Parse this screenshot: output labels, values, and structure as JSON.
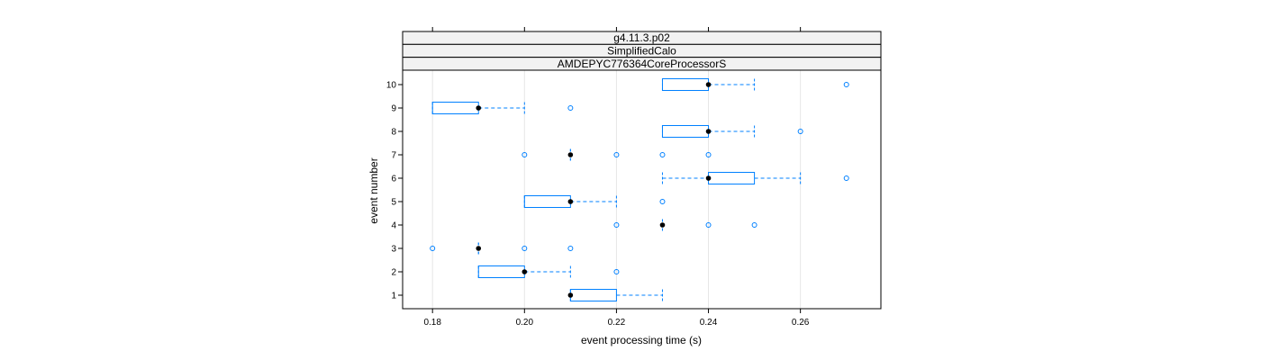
{
  "chart_data": {
    "type": "box",
    "strips": [
      "g4.11.3.p02",
      "SimplifiedCalo",
      "AMDEPYC776364CoreProcessorS"
    ],
    "xlabel": "event processing time (s)",
    "ylabel": "event number",
    "xlim": [
      0.1735,
      0.2775
    ],
    "xticks": [
      0.18,
      0.2,
      0.22,
      0.24,
      0.26
    ],
    "xtick_labels": [
      "0.18",
      "0.20",
      "0.22",
      "0.24",
      "0.26"
    ],
    "yticks": [
      1,
      2,
      3,
      4,
      5,
      6,
      7,
      8,
      9,
      10
    ],
    "ytick_labels": [
      "1",
      "2",
      "3",
      "4",
      "5",
      "6",
      "7",
      "8",
      "9",
      "10"
    ],
    "grid": "vertical",
    "colors": {
      "box": "#0080ff",
      "median": "#000000",
      "outlier": "#0080ff",
      "grid": "#e6e6e6",
      "strip": "#f2f2f2"
    },
    "boxes": [
      {
        "event": 1,
        "lower_whisker": 0.21,
        "q1": 0.21,
        "median": 0.21,
        "q3": 0.22,
        "upper_whisker": 0.23,
        "outliers": []
      },
      {
        "event": 2,
        "lower_whisker": 0.19,
        "q1": 0.19,
        "median": 0.2,
        "q3": 0.2,
        "upper_whisker": 0.21,
        "outliers": [
          0.22
        ]
      },
      {
        "event": 3,
        "lower_whisker": 0.19,
        "q1": 0.19,
        "median": 0.19,
        "q3": 0.19,
        "upper_whisker": 0.19,
        "outliers": [
          0.18,
          0.2,
          0.21
        ]
      },
      {
        "event": 4,
        "lower_whisker": 0.23,
        "q1": 0.23,
        "median": 0.23,
        "q3": 0.23,
        "upper_whisker": 0.23,
        "outliers": [
          0.22,
          0.24,
          0.25
        ]
      },
      {
        "event": 5,
        "lower_whisker": 0.2,
        "q1": 0.2,
        "median": 0.21,
        "q3": 0.21,
        "upper_whisker": 0.22,
        "outliers": [
          0.23
        ]
      },
      {
        "event": 6,
        "lower_whisker": 0.23,
        "q1": 0.24,
        "median": 0.24,
        "q3": 0.25,
        "upper_whisker": 0.26,
        "outliers": [
          0.27
        ]
      },
      {
        "event": 7,
        "lower_whisker": 0.21,
        "q1": 0.21,
        "median": 0.21,
        "q3": 0.21,
        "upper_whisker": 0.21,
        "outliers": [
          0.2,
          0.22,
          0.23,
          0.24
        ]
      },
      {
        "event": 8,
        "lower_whisker": 0.23,
        "q1": 0.23,
        "median": 0.24,
        "q3": 0.24,
        "upper_whisker": 0.25,
        "outliers": [
          0.26
        ]
      },
      {
        "event": 9,
        "lower_whisker": 0.18,
        "q1": 0.18,
        "median": 0.19,
        "q3": 0.19,
        "upper_whisker": 0.2,
        "outliers": [
          0.21
        ]
      },
      {
        "event": 10,
        "lower_whisker": 0.23,
        "q1": 0.23,
        "median": 0.24,
        "q3": 0.24,
        "upper_whisker": 0.25,
        "outliers": [
          0.27
        ]
      }
    ]
  }
}
